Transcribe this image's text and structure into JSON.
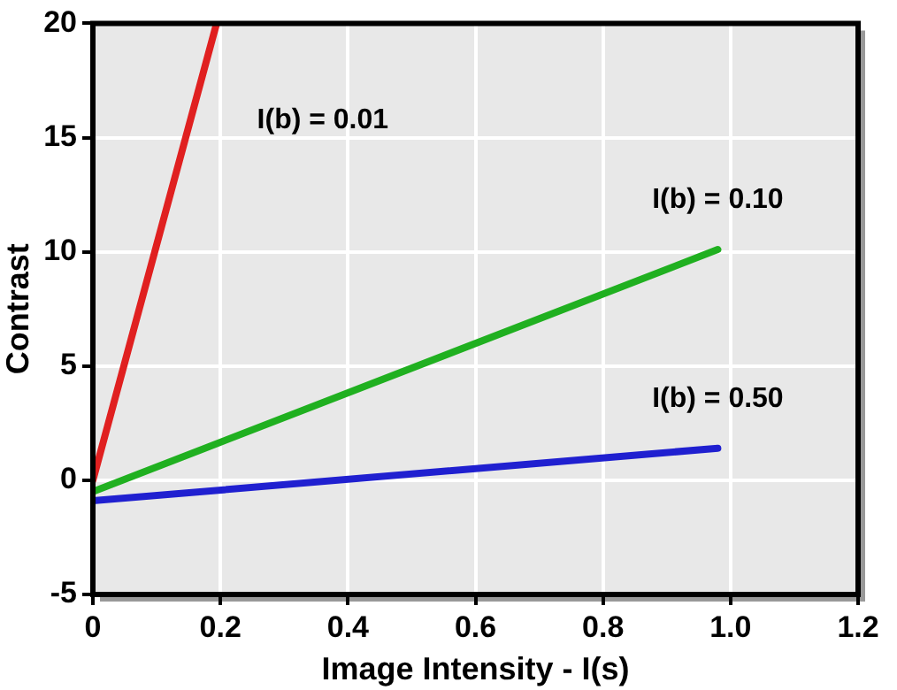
{
  "chart_data": {
    "type": "line",
    "xlabel": "Image Intensity - I(s)",
    "ylabel": "Contrast",
    "xlim": [
      0,
      1.2
    ],
    "xticks": [
      0,
      0.2,
      0.4,
      0.6,
      0.8,
      {
        "value": 1,
        "label": "1.0"
      },
      1.2
    ],
    "ylim": [
      -5,
      20
    ],
    "yticks": [
      -5,
      0,
      5,
      10,
      15,
      20
    ],
    "grid": true,
    "legend": false,
    "marker": "none",
    "line_style": "solid",
    "series": [
      {
        "name": "I(b) = 0.01",
        "color": "#e02020",
        "x": [
          0,
          0.194
        ],
        "values": [
          0,
          20
        ]
      },
      {
        "name": "I(b) = 0.10",
        "color": "#20b020",
        "x": [
          0,
          0.98
        ],
        "values": [
          -0.5,
          10.1
        ]
      },
      {
        "name": "I(b) = 0.50",
        "color": "#2020d0",
        "x": [
          0,
          0.98
        ],
        "values": [
          -0.9,
          1.4
        ]
      }
    ]
  }
}
